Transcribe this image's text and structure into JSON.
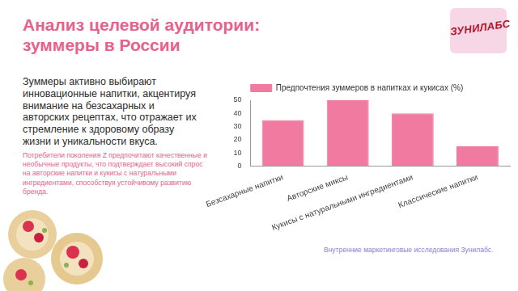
{
  "slide": {
    "title": "Анализ целевой аудитории: зуммеры в России",
    "logo": "ЗУНИЛАБС",
    "paragraphs": [
      "Зуммеры активно выбирают инновационные напитки, акцентируя внимание на безсахарных и авторских рецептах, что отражает их стремление к здоровому образу жизни и уникальности вкуса.",
      "Потребители поколения Z предпочитают качественные и необычные продукты, что подтверждает высокий спрос на авторские напитки и кукисы с натуральными ингредиентами, способствуя устойчивому развитию бренда."
    ],
    "source": "Внутренние маркетинговые исследования Зунилабс."
  },
  "chart_data": {
    "type": "bar",
    "series": [
      {
        "name": "Предпочтения зуммеров в напитках и кукисах (%)",
        "color": "#f07aa0",
        "values": [
          35,
          50,
          40,
          15
        ]
      }
    ],
    "categories": [
      "Безсахарные напитки",
      "Авторские миксы",
      "Кукисы с натуральными ингредиентами",
      "Классические напитки"
    ],
    "ylim": [
      0,
      50
    ],
    "yticks": [
      0,
      10,
      20,
      30,
      40,
      50
    ],
    "grid": false,
    "legend": "top"
  }
}
